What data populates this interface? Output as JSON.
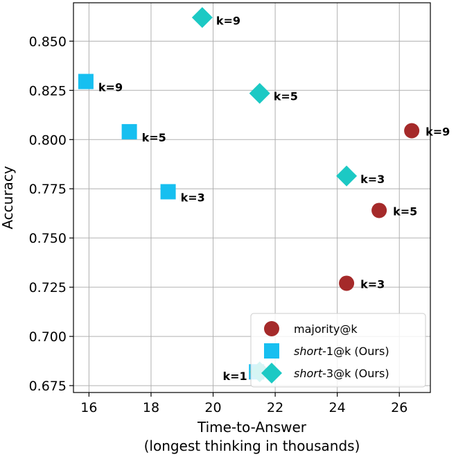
{
  "chart_data": {
    "type": "scatter",
    "xlabel": [
      "Time-to-Answer",
      "(longest thinking in thousands)"
    ],
    "ylabel": "Accuracy",
    "xlim": [
      15.5,
      27.0
    ],
    "ylim": [
      0.6715,
      0.8695
    ],
    "xticks": [
      16,
      18,
      20,
      22,
      24,
      26
    ],
    "yticks": [
      0.675,
      0.7,
      0.725,
      0.75,
      0.775,
      0.8,
      0.825,
      0.85
    ],
    "ytick_labels": [
      "0.675",
      "0.700",
      "0.725",
      "0.750",
      "0.775",
      "0.800",
      "0.825",
      "0.850"
    ],
    "grid": true,
    "legend_position": "lower-right",
    "series": [
      {
        "name": "majority@k",
        "name_parts": [
          {
            "text": "majority@k",
            "italic": false
          }
        ],
        "marker": "circle",
        "color": "#a52a2a",
        "points": [
          {
            "x": 21.5,
            "y": 0.682,
            "label": "k=1"
          },
          {
            "x": 24.3,
            "y": 0.727,
            "label": "k=3"
          },
          {
            "x": 25.35,
            "y": 0.764,
            "label": "k=5"
          },
          {
            "x": 26.4,
            "y": 0.8045,
            "label": "k=9"
          }
        ]
      },
      {
        "name": "short-1@k  (Ours)",
        "name_parts": [
          {
            "text": "short",
            "italic": true
          },
          {
            "text": "-1@k  (Ours)",
            "italic": false
          }
        ],
        "marker": "square",
        "color": "#17bff0",
        "points": [
          {
            "x": 21.4,
            "y": 0.682,
            "label": ""
          },
          {
            "x": 18.55,
            "y": 0.7735,
            "label": "k=3"
          },
          {
            "x": 17.3,
            "y": 0.804,
            "label": "k=5"
          },
          {
            "x": 15.9,
            "y": 0.8295,
            "label": "k=9"
          }
        ]
      },
      {
        "name": "short-3@k  (Ours)",
        "name_parts": [
          {
            "text": "short",
            "italic": true
          },
          {
            "text": "-3@k  (Ours)",
            "italic": false
          }
        ],
        "marker": "diamond",
        "color": "#1cc9c4",
        "points": [
          {
            "x": 21.5,
            "y": 0.682,
            "label": ""
          },
          {
            "x": 24.3,
            "y": 0.7815,
            "label": "k=3"
          },
          {
            "x": 21.5,
            "y": 0.8235,
            "label": "k=5"
          },
          {
            "x": 19.65,
            "y": 0.862,
            "label": "k=9"
          }
        ]
      }
    ]
  }
}
